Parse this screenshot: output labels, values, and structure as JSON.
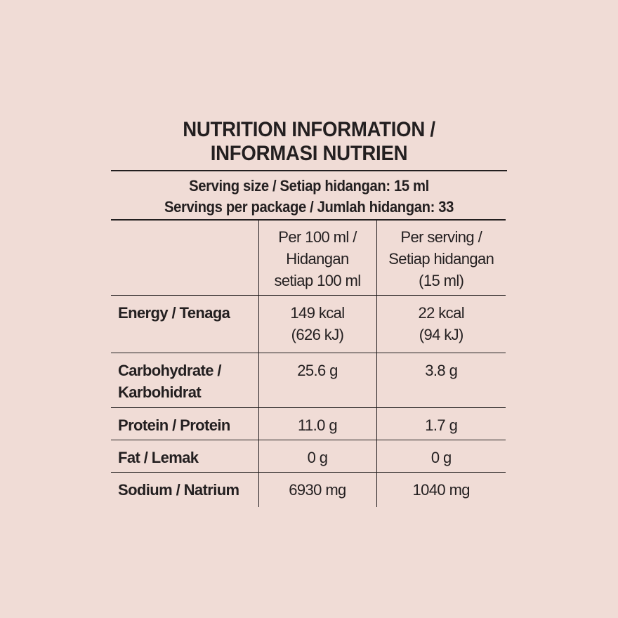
{
  "title": {
    "line1": "NUTRITION INFORMATION /",
    "line2": "INFORMASI NUTRIEN"
  },
  "serving": {
    "size": "Serving size / Setiap hidangan: 15 ml",
    "per_package": "Servings per package / Jumlah hidangan: 33"
  },
  "columns": {
    "per100": [
      "Per 100 ml /",
      "Hidangan",
      "setiap 100 ml"
    ],
    "per_serving": [
      "Per serving /",
      "Setiap hidangan",
      "(15 ml)"
    ]
  },
  "rows": [
    {
      "name": [
        "Energy / Tenaga"
      ],
      "per100": [
        "149 kcal",
        "(626 kJ)"
      ],
      "per_serving": [
        "22 kcal",
        "(94 kJ)"
      ]
    },
    {
      "name": [
        "Carbohydrate /",
        "Karbohidrat"
      ],
      "per100": [
        "25.6 g"
      ],
      "per_serving": [
        "3.8 g"
      ]
    },
    {
      "name": [
        "Protein / Protein"
      ],
      "per100": [
        "11.0 g"
      ],
      "per_serving": [
        "1.7 g"
      ]
    },
    {
      "name": [
        "Fat / Lemak"
      ],
      "per100": [
        "0 g"
      ],
      "per_serving": [
        "0 g"
      ]
    },
    {
      "name": [
        "Sodium / Natrium"
      ],
      "per100": [
        "6930 mg"
      ],
      "per_serving": [
        "1040 mg"
      ]
    }
  ]
}
